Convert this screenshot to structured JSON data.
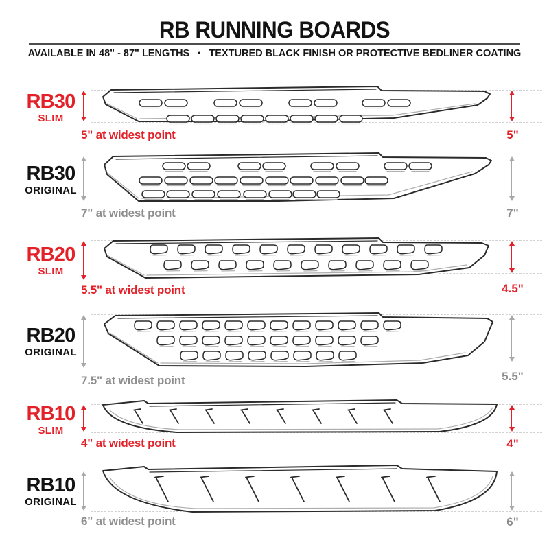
{
  "header": {
    "title": "RB RUNNING BOARDS",
    "subtitle": {
      "lengths": "AVAILABLE IN 48\" - 87\" LENGTHS",
      "bullet": "•",
      "finish": "TEXTURED BLACK FINISH OR PROTECTIVE BEDLINER COATING"
    }
  },
  "colors": {
    "accent_red": "#e32128",
    "text_black": "#131313",
    "note_gray": "#8d8d8d",
    "arrow_gray": "#a8a8a8",
    "dash_gray": "#d1d1d1",
    "line_black": "#2b2b2b"
  },
  "rows": [
    {
      "model": "RB30",
      "variant": "SLIM",
      "accent": "red",
      "width_note": "5\" at widest point",
      "height_note": "5\""
    },
    {
      "model": "RB30",
      "variant": "ORIGINAL",
      "accent": "gray",
      "width_note": "7\" at widest point",
      "height_note": "7\""
    },
    {
      "model": "RB20",
      "variant": "SLIM",
      "accent": "red",
      "width_note": "5.5\" at widest point",
      "height_note": "4.5\""
    },
    {
      "model": "RB20",
      "variant": "ORIGINAL",
      "accent": "gray",
      "width_note": "7.5\" at widest point",
      "height_note": "5.5\""
    },
    {
      "model": "RB10",
      "variant": "SLIM",
      "accent": "red",
      "width_note": "4\" at widest point",
      "height_note": "4\""
    },
    {
      "model": "RB10",
      "variant": "ORIGINAL",
      "accent": "gray",
      "width_note": "6\" at widest point",
      "height_note": "6\""
    }
  ]
}
